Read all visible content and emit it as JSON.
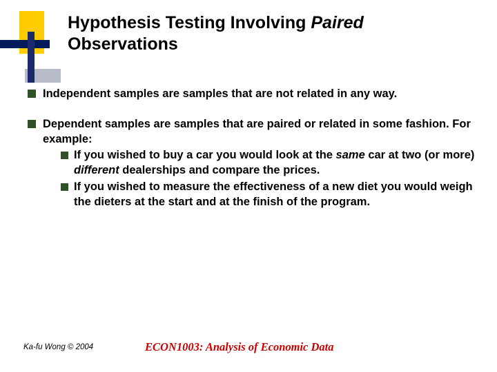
{
  "title": {
    "prefix": "Hypothesis Testing Involving ",
    "italic": "Paired",
    "suffix": " Observations"
  },
  "bullets": [
    {
      "lead": "Independent samples",
      "rest": " are samples that are not related in any way."
    },
    {
      "lead": "Dependent samples",
      "rest": " are samples that are paired or related in some fashion.  For example:",
      "subs": [
        {
          "t1": "If you wished to buy a car you would look at the ",
          "i1": "same",
          "t2": " car at two (or more) ",
          "i2": "different",
          "t3": " dealerships and compare the prices."
        },
        {
          "t1": "If you wished to measure the effectiveness of a new diet you would weigh the dieters at the start and at the finish of the program.",
          "i1": "",
          "t2": "",
          "i2": "",
          "t3": ""
        }
      ]
    }
  ],
  "footer": {
    "left": "Ka-fu Wong © 2004",
    "center": "ECON1003: Analysis of Economic Data"
  },
  "colors": {
    "bullet_square": "#305028",
    "footer_red": "#cc0000",
    "dec_yellow": "#ffcc00",
    "dec_navy": "#001a5c",
    "dec_gray": "#b8bcc9"
  }
}
